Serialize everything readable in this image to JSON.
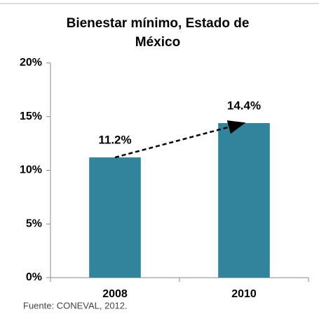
{
  "chart_data": {
    "type": "bar",
    "title": "Bienestar mínimo, Estado de México",
    "categories": [
      "2008",
      "2010"
    ],
    "values": [
      11.2,
      14.4
    ],
    "value_labels": [
      "11.2%",
      "14.4%"
    ],
    "color": "#31849b",
    "ylim": [
      0,
      20
    ],
    "yticks": [
      {
        "value": 0,
        "label": "0%"
      },
      {
        "value": 5,
        "label": "5%"
      },
      {
        "value": 10,
        "label": "10%"
      },
      {
        "value": 15,
        "label": "15%"
      },
      {
        "value": 20,
        "label": "20%"
      }
    ],
    "grid": false,
    "source": "Fuente: CONEVAL, 2012."
  }
}
